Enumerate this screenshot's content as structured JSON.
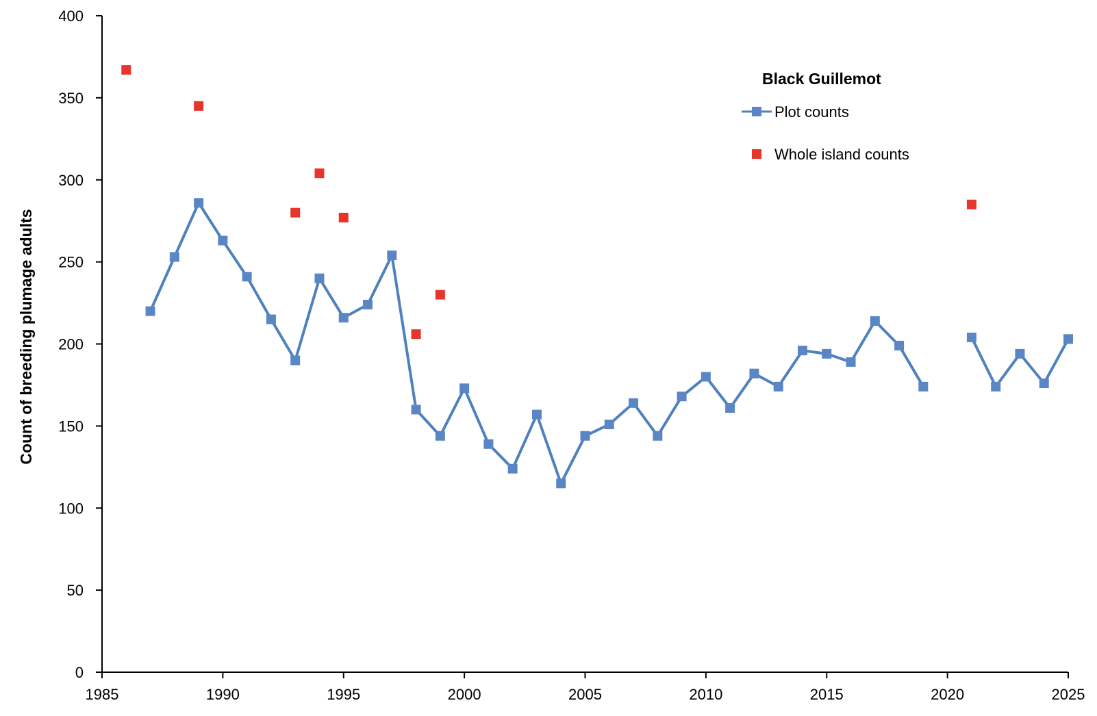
{
  "chart_data": {
    "type": "line",
    "title": "",
    "xlabel": "",
    "ylabel": "Count of breeding plumage adults",
    "xlim": [
      1985,
      2025
    ],
    "ylim": [
      0,
      400
    ],
    "x_ticks": [
      1985,
      1990,
      1995,
      2000,
      2005,
      2010,
      2015,
      2020,
      2025
    ],
    "y_ticks": [
      0,
      50,
      100,
      150,
      200,
      250,
      300,
      350,
      400
    ],
    "grid": false,
    "legend": {
      "title": "Black Guillemot",
      "position": "top-right"
    },
    "series": [
      {
        "name": "Plot counts",
        "style": "line-with-square-markers",
        "color": "#4f81bd",
        "marker_color": "#5b86c5",
        "points": [
          [
            1987,
            220
          ],
          [
            1988,
            253
          ],
          [
            1989,
            286
          ],
          [
            1990,
            263
          ],
          [
            1991,
            241
          ],
          [
            1992,
            215
          ],
          [
            1993,
            190
          ],
          [
            1994,
            240
          ],
          [
            1995,
            216
          ],
          [
            1996,
            224
          ],
          [
            1997,
            254
          ],
          [
            1998,
            160
          ],
          [
            1999,
            144
          ],
          [
            2000,
            173
          ],
          [
            2001,
            139
          ],
          [
            2002,
            124
          ],
          [
            2003,
            157
          ],
          [
            2004,
            115
          ],
          [
            2005,
            144
          ],
          [
            2006,
            151
          ],
          [
            2007,
            164
          ],
          [
            2008,
            144
          ],
          [
            2009,
            168
          ],
          [
            2010,
            180
          ],
          [
            2011,
            161
          ],
          [
            2012,
            182
          ],
          [
            2013,
            174
          ],
          [
            2014,
            196
          ],
          [
            2015,
            194
          ],
          [
            2016,
            189
          ],
          [
            2017,
            214
          ],
          [
            2018,
            199
          ],
          [
            2019,
            174
          ],
          [
            2020,
            null
          ],
          [
            2021,
            204
          ],
          [
            2022,
            174
          ],
          [
            2023,
            194
          ],
          [
            2024,
            176
          ],
          [
            2025,
            203
          ]
        ]
      },
      {
        "name": "Whole island counts",
        "style": "square-markers-only",
        "color": "#e8352b",
        "points": [
          [
            1986,
            367
          ],
          [
            1989,
            345
          ],
          [
            1993,
            280
          ],
          [
            1994,
            304
          ],
          [
            1995,
            277
          ],
          [
            1998,
            206
          ],
          [
            1999,
            230
          ],
          [
            2021,
            285
          ]
        ]
      }
    ]
  }
}
